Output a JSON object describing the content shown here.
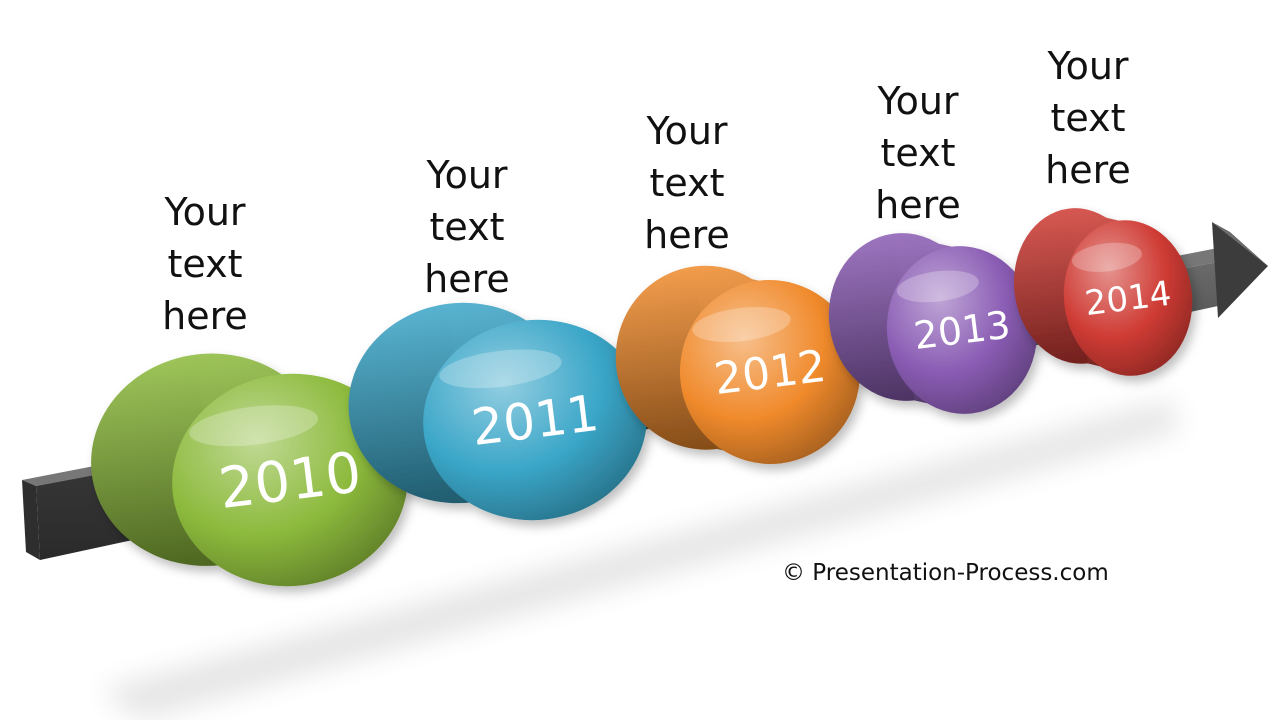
{
  "diagram": {
    "type": "timeline",
    "milestones": [
      {
        "year": "2010",
        "color": "#8cba3c",
        "caption": [
          "Your",
          "text",
          "here"
        ]
      },
      {
        "year": "2011",
        "color": "#3aa6c8",
        "caption": [
          "Your",
          "text",
          "here"
        ]
      },
      {
        "year": "2012",
        "color": "#f08a2c",
        "caption": [
          "Your",
          "text",
          "here"
        ]
      },
      {
        "year": "2013",
        "color": "#8a5cb4",
        "caption": [
          "Your",
          "text",
          "here"
        ]
      },
      {
        "year": "2014",
        "color": "#cf3b34",
        "caption": [
          "Your",
          "text",
          "here"
        ]
      }
    ],
    "arrow_color": "#4a4a4a"
  },
  "footer": {
    "copyright": "© Presentation-Process.com"
  }
}
